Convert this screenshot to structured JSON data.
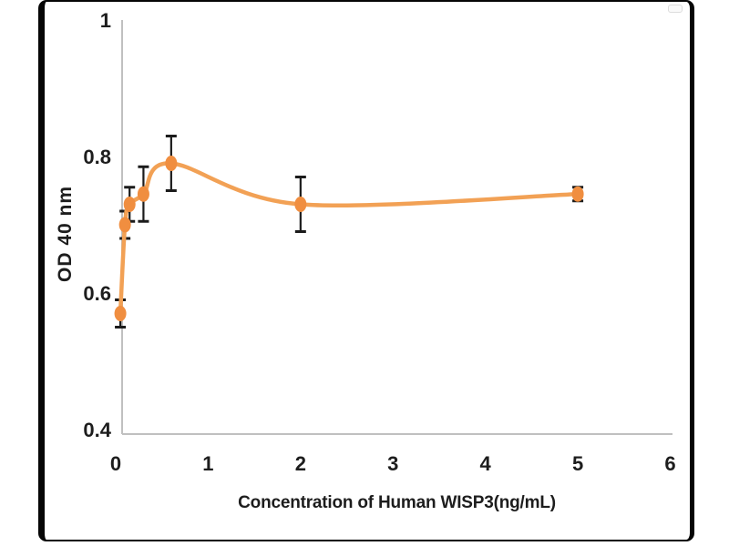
{
  "frame": {
    "background": "#ffffff",
    "border_color": "#060606"
  },
  "chart_data": {
    "type": "line",
    "xlabel": "Concentration of Human WISP3(ng/mL)",
    "ylabel": "OD 40 nm",
    "xlim": [
      0,
      6
    ],
    "ylim": [
      0.4,
      1
    ],
    "grid": false,
    "legend": "none",
    "axis_color": "#C0C0C0",
    "text_color": "#1d1d1d",
    "x_ticks": [
      {
        "label": "0",
        "value": 0
      },
      {
        "label": "1",
        "value": 1
      },
      {
        "label": "2",
        "value": 2
      },
      {
        "label": "3",
        "value": 3
      },
      {
        "label": "4",
        "value": 4
      },
      {
        "label": "5",
        "value": 5
      },
      {
        "label": "6",
        "value": 6
      }
    ],
    "y_ticks": [
      {
        "label": "1",
        "value": 1
      },
      {
        "label": "0.8",
        "value": 0.8
      },
      {
        "label": "0.6",
        "value": 0.6
      },
      {
        "label": "0.4",
        "value": 0.4
      }
    ],
    "series": [
      {
        "line_color": "#F2A155",
        "marker_color": "#F08E40",
        "error_bar_color": "#1b1b1b",
        "points": [
          {
            "x": 0.05,
            "od": 0.57,
            "err": 0.02
          },
          {
            "x": 0.1,
            "od": 0.7,
            "err": 0.02
          },
          {
            "x": 0.15,
            "od": 0.73,
            "err": 0.025
          },
          {
            "x": 0.3,
            "od": 0.745,
            "err": 0.04
          },
          {
            "x": 0.6,
            "od": 0.79,
            "err": 0.04
          },
          {
            "x": 2,
            "od": 0.73,
            "err": 0.04
          },
          {
            "x": 5,
            "od": 0.745,
            "err": 0.01
          }
        ]
      }
    ]
  }
}
